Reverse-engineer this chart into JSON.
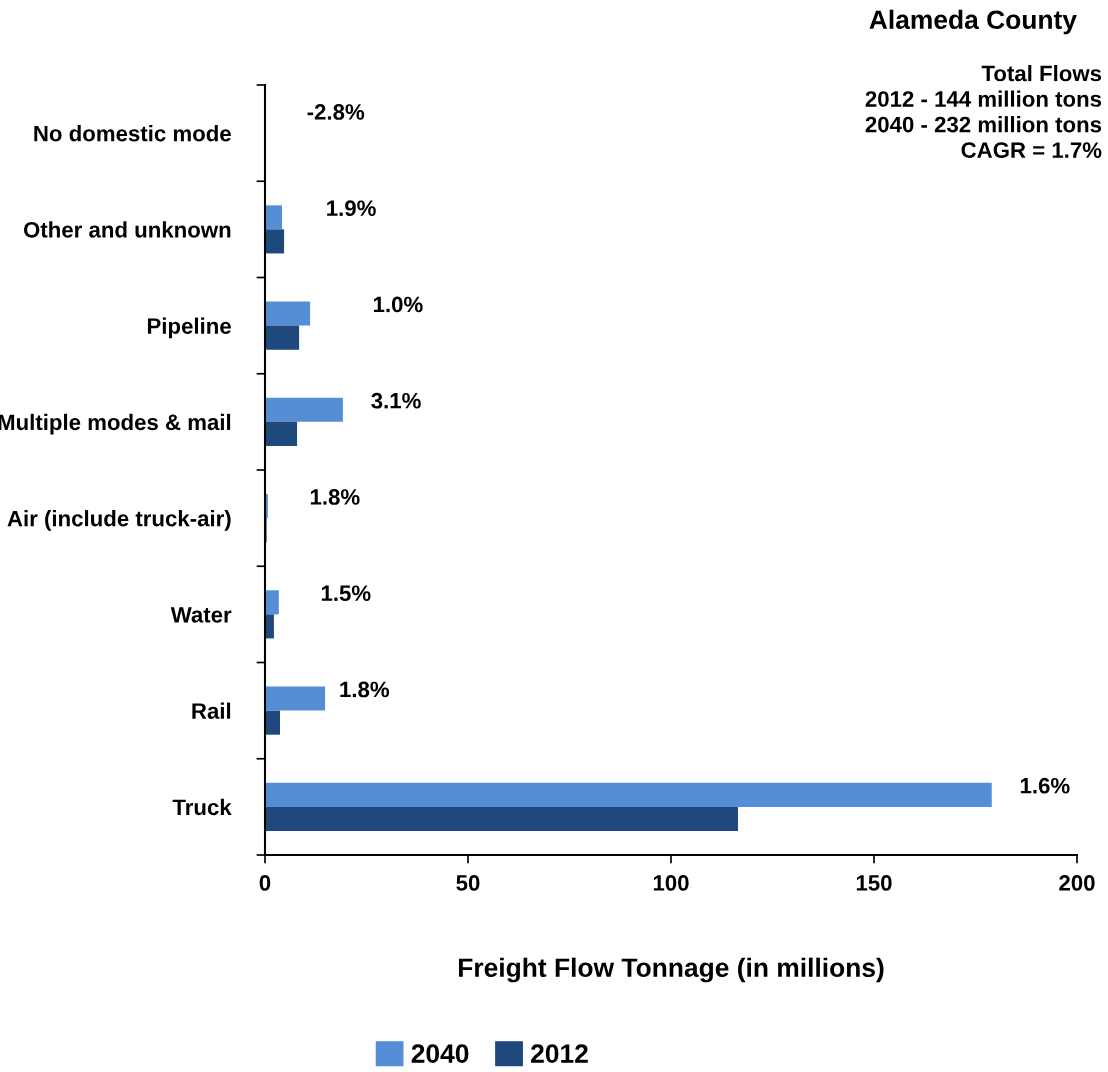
{
  "chart_data": {
    "type": "bar",
    "orientation": "horizontal",
    "title": "Alameda County",
    "xlabel": "Freight Flow Tonnage (in millions)",
    "categories": [
      "No domestic mode",
      "Other and unknown",
      "Pipeline",
      "Multiple modes & mail",
      "Air (include truck-air)",
      "Water",
      "Rail",
      "Truck"
    ],
    "series": [
      {
        "name": "2040",
        "color": "#558ed5",
        "values": [
          0,
          4.2,
          11.1,
          19.2,
          0.7,
          3.4,
          14.8,
          179
        ]
      },
      {
        "name": "2012",
        "color": "#1f497d",
        "values": [
          0,
          4.7,
          8.4,
          7.9,
          0.4,
          2.2,
          3.7,
          116.5
        ]
      }
    ],
    "xlim": [
      0,
      200
    ],
    "xticks": [
      0,
      50,
      100,
      150,
      200
    ],
    "grid": false,
    "legend": "bottom",
    "annotations": [
      "-2.8%",
      "1.9%",
      "1.0%",
      "3.1%",
      "1.8%",
      "1.5%",
      "1.8%",
      "1.6%",
      "Total Flows\n2012 - 144 million tons\n2040 - 232 million tons\nCAGR = 1.7%"
    ]
  }
}
